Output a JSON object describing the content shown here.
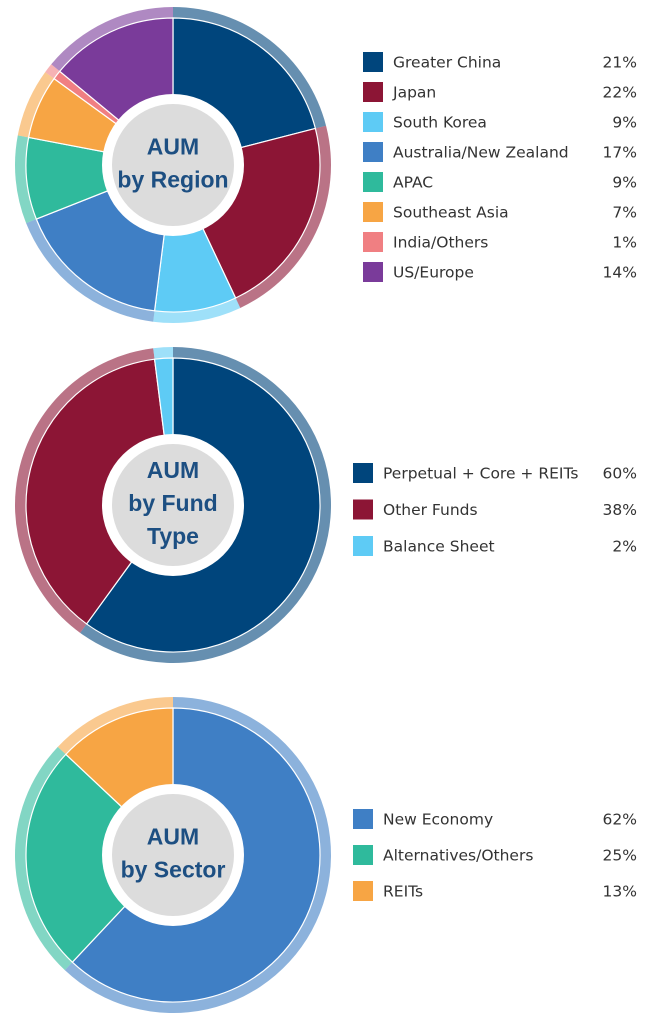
{
  "chart_data": [
    {
      "type": "pie",
      "center_label": [
        "AUM",
        "by Region"
      ],
      "categories": [
        "Greater China",
        "Japan",
        "South Korea",
        "Australia/New Zealand",
        "APAC",
        "Southeast Asia",
        "India/Others",
        "US/Europe"
      ],
      "values": [
        21,
        22,
        9,
        17,
        9,
        7,
        1,
        14
      ],
      "value_labels": [
        "21%",
        "22%",
        "9%",
        "17%",
        "9%",
        "7%",
        "1%",
        "14%"
      ],
      "colors": [
        "#00457c",
        "#8c1535",
        "#5ecbf5",
        "#3f7fc5",
        "#2fba9c",
        "#f7a544",
        "#f07f82",
        "#7a3b9a"
      ]
    },
    {
      "type": "pie",
      "center_label": [
        "AUM",
        "by Fund",
        "Type"
      ],
      "categories": [
        "Perpetual + Core + REITs",
        "Other Funds",
        "Balance Sheet"
      ],
      "values": [
        60,
        38,
        2
      ],
      "value_labels": [
        "60%",
        "38%",
        "2%"
      ],
      "colors": [
        "#00457c",
        "#8c1535",
        "#5ecbf5"
      ]
    },
    {
      "type": "pie",
      "center_label": [
        "AUM",
        "by Sector"
      ],
      "categories": [
        "New Economy",
        "Alternatives/Others",
        "REITs"
      ],
      "values": [
        62,
        25,
        13
      ],
      "value_labels": [
        "62%",
        "25%",
        "13%"
      ],
      "colors": [
        "#3f7fc5",
        "#2fba9c",
        "#f7a544"
      ]
    }
  ]
}
